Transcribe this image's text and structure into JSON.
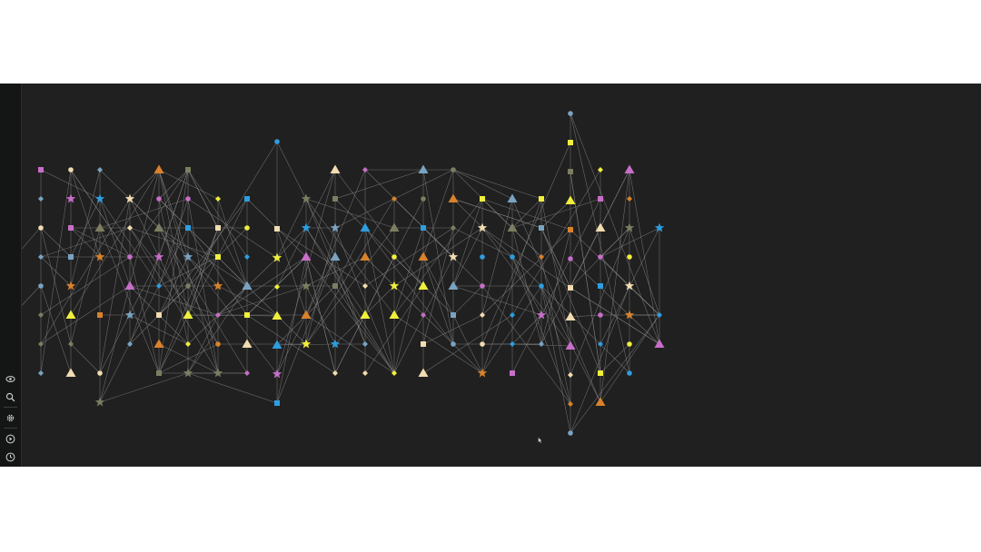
{
  "app": {
    "background": "#202020",
    "sidebar_background": "#141616",
    "edge_color": "#8a8a8a"
  },
  "sidebar": {
    "items": [
      {
        "id": "eye",
        "icon": "eye-icon"
      },
      {
        "id": "search",
        "icon": "search-icon"
      },
      {
        "id": "settings",
        "icon": "gear-icon"
      },
      {
        "id": "play",
        "icon": "play-circle-icon"
      },
      {
        "id": "history",
        "icon": "clock-icon"
      }
    ]
  },
  "legend_colors": {
    "blue": "#2d9ee0",
    "pink": "#c86ec8",
    "orange": "#d9822b",
    "olive": "#7d7d62",
    "cream": "#f2dcb0",
    "yellow": "#f0f03c",
    "steel": "#7aa3c2"
  },
  "graph": {
    "node_shapes": [
      "triangle",
      "star",
      "circle",
      "square",
      "diamond"
    ],
    "node_count": 260,
    "edge_count": 420,
    "directed": true
  }
}
